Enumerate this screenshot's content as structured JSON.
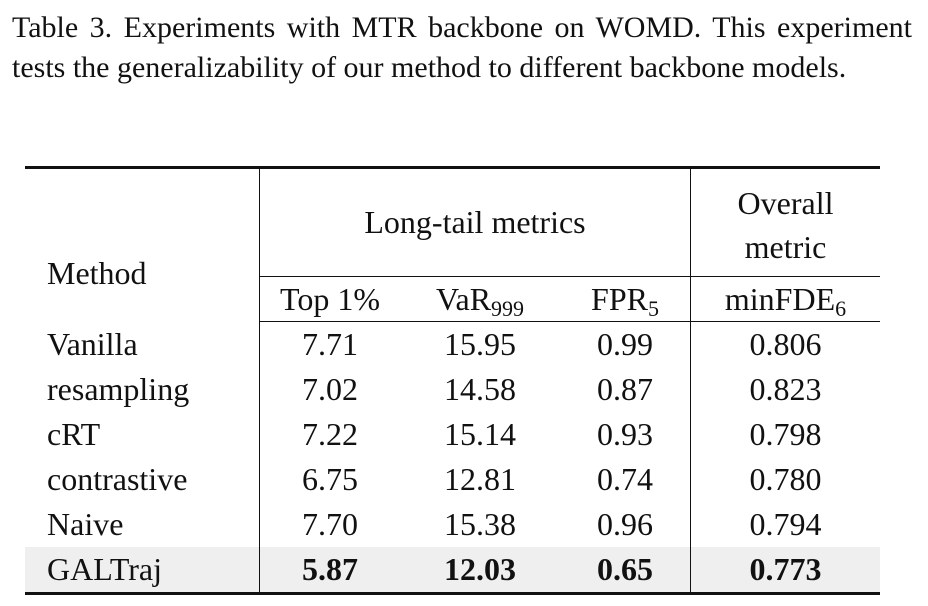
{
  "caption": "Table 3. Experiments with MTR backbone on WOMD. This experiment tests the generalizability of our method to different backbone models.",
  "header": {
    "method": "Method",
    "group_long_tail": "Long-tail metrics",
    "group_overall_line1": "Overall",
    "group_overall_line2": "metric",
    "col_top": "Top 1%",
    "col_var": "VaR",
    "col_var_sub": "999",
    "col_fpr": "FPR",
    "col_fpr_sub": "5",
    "col_fde": "minFDE",
    "col_fde_sub": "6"
  },
  "rows": [
    {
      "method": "Vanilla",
      "top": "7.71",
      "var": "15.95",
      "fpr": "0.99",
      "fde": "0.806"
    },
    {
      "method": "resampling",
      "top": "7.02",
      "var": "14.58",
      "fpr": "0.87",
      "fde": "0.823"
    },
    {
      "method": "cRT",
      "top": "7.22",
      "var": "15.14",
      "fpr": "0.93",
      "fde": "0.798"
    },
    {
      "method": "contrastive",
      "top": "6.75",
      "var": "12.81",
      "fpr": "0.74",
      "fde": "0.780"
    },
    {
      "method": "Naive",
      "top": "7.70",
      "var": "15.38",
      "fpr": "0.96",
      "fde": "0.794"
    },
    {
      "method": "GALTraj",
      "top": "5.87",
      "var": "12.03",
      "fpr": "0.65",
      "fde": "0.773"
    }
  ]
}
